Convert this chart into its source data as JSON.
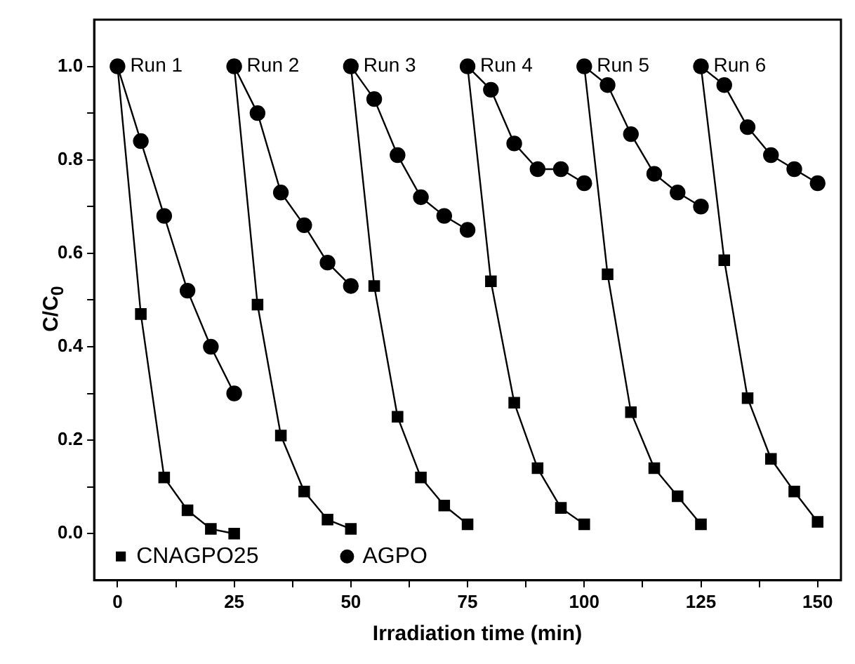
{
  "chart_data": {
    "type": "line",
    "xlabel": "Irradiation time (min)",
    "ylabel": "C/C$_{0}$",
    "x": [
      0,
      5,
      10,
      15,
      20,
      25,
      25,
      30,
      35,
      40,
      45,
      50,
      50,
      55,
      60,
      65,
      70,
      75,
      75,
      80,
      85,
      90,
      95,
      100,
      100,
      105,
      110,
      115,
      120,
      125,
      125,
      130,
      135,
      140,
      145,
      150
    ],
    "series": [
      {
        "name": "CNAGPO25",
        "color": "#000000",
        "marker": "square",
        "values": [
          1.0,
          0.47,
          0.12,
          0.05,
          0.01,
          0.0,
          1.0,
          0.49,
          0.21,
          0.09,
          0.03,
          0.01,
          1.0,
          0.53,
          0.25,
          0.12,
          0.06,
          0.02,
          1.0,
          0.54,
          0.28,
          0.14,
          0.055,
          0.02,
          1.0,
          0.555,
          0.26,
          0.14,
          0.08,
          0.02,
          1.0,
          0.585,
          0.29,
          0.16,
          0.09,
          0.025
        ]
      },
      {
        "name": "AGPO",
        "color": "#000000",
        "marker": "circle",
        "values": [
          1.0,
          0.84,
          0.68,
          0.52,
          0.4,
          0.3,
          1.0,
          0.9,
          0.73,
          0.66,
          0.58,
          0.53,
          1.0,
          0.93,
          0.81,
          0.72,
          0.68,
          0.65,
          1.0,
          0.95,
          0.835,
          0.78,
          0.78,
          0.75,
          1.0,
          0.96,
          0.855,
          0.77,
          0.73,
          0.7,
          1.0,
          0.96,
          0.87,
          0.81,
          0.78,
          0.75
        ]
      }
    ],
    "xlim": [
      -5,
      155
    ],
    "xticks": [
      0,
      {
        "value": 12.5,
        "label": null
      },
      25,
      {
        "value": 37.5,
        "label": null
      },
      50,
      {
        "value": 62.5,
        "label": null
      },
      75,
      {
        "value": 87.5,
        "label": null
      },
      100,
      {
        "value": 112.5,
        "label": null
      },
      125,
      {
        "value": 137.5,
        "label": null
      },
      150
    ],
    "ylim": [
      -0.1,
      1.1
    ],
    "yticks": [
      {
        "value": 0,
        "label": "0.0"
      },
      {
        "value": 0.1,
        "label": null
      },
      {
        "value": 0.2,
        "label": "0.2"
      },
      {
        "value": 0.3,
        "label": null
      },
      {
        "value": 0.4,
        "label": "0.4"
      },
      {
        "value": 0.5,
        "label": null
      },
      {
        "value": 0.6,
        "label": "0.6"
      },
      {
        "value": 0.7,
        "label": null
      },
      {
        "value": 0.8,
        "label": "0.8"
      },
      {
        "value": 0.9,
        "label": null
      },
      {
        "value": 1.0,
        "label": "1.0"
      }
    ],
    "grid": false,
    "legend": "bottom left",
    "line_style": "solid",
    "annotations": [
      {
        "text": "Run 1",
        "x": 0,
        "y": 1.0
      },
      {
        "text": "Run 2",
        "x": 25,
        "y": 1.0
      },
      {
        "text": "Run 3",
        "x": 50,
        "y": 1.0
      },
      {
        "text": "Run 4",
        "x": 75,
        "y": 1.0
      },
      {
        "text": "Run 5",
        "x": 100,
        "y": 1.0
      },
      {
        "text": "Run 6",
        "x": 125,
        "y": 1.0
      }
    ]
  }
}
